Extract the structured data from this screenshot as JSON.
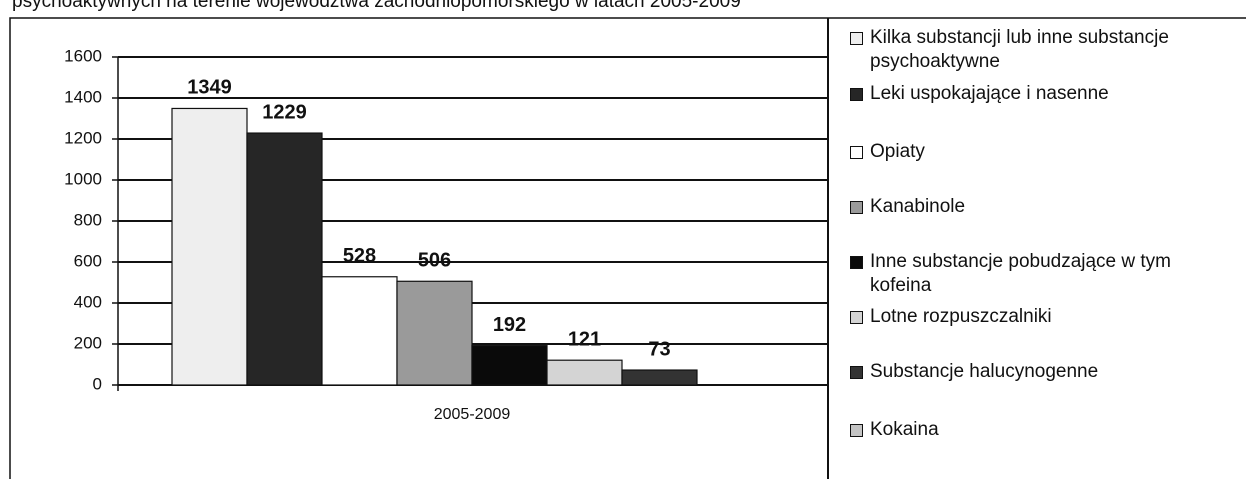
{
  "chart_data": {
    "type": "bar",
    "title": "psychoaktywnych na terenie województwa zachodniopomorskiego w latach 2005-2009",
    "categories": [
      "2005-2009"
    ],
    "series": [
      {
        "name": "Kilka substancji lub inne substancje psychoaktywne",
        "color": "#eeeeee",
        "values": [
          1349
        ]
      },
      {
        "name": "Leki uspokajające i nasenne",
        "color": "#262626",
        "values": [
          1229
        ]
      },
      {
        "name": "Opiaty",
        "color": "#ffffff",
        "values": [
          528
        ]
      },
      {
        "name": "Kanabinole",
        "color": "#9a9a9a",
        "values": [
          506
        ]
      },
      {
        "name": "Inne substancje pobudzające w tym kofeina",
        "color": "#0a0a0a",
        "values": [
          192
        ]
      },
      {
        "name": "Lotne rozpuszczalniki",
        "color": "#d4d4d4",
        "values": [
          121
        ]
      },
      {
        "name": "Substancje halucynogenne",
        "color": "#333333",
        "values": [
          73
        ]
      },
      {
        "name": "Kokaina",
        "color": "#c4c4c4",
        "values": [
          0
        ]
      }
    ],
    "ylim": [
      0,
      1600
    ],
    "yticks": [
      0,
      200,
      400,
      600,
      800,
      1000,
      1200,
      1400,
      1600
    ],
    "grid": true,
    "legend": "right"
  }
}
